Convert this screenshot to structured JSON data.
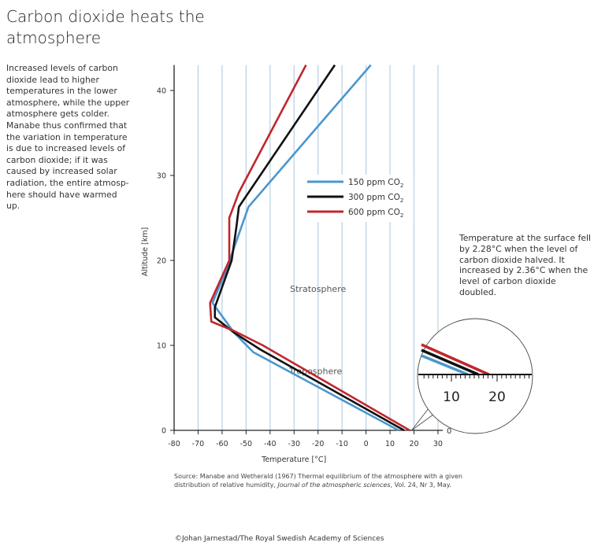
{
  "title": "Carbon dioxide heats the atmosphere",
  "description": "Increased levels of carbon dioxide lead to higher temperatures in the lower atmosphere, while the upper atmosphere gets colder. Manabe thus confirmed that the variation in temperature is due to increased levels of carbon dioxide; if it was caused by increased solar radiation, the entire atmosp-here should have warmed up.",
  "annotation": "Temperature at the surface fell by 2.28°C when the level of carbon dioxide halved. It increased by 2.36°C when the level of carbon dioxide doubled.",
  "source": "Source: Manabe and Wetherald (1967) Thermal equilibrium of the atmosphere with a given distribution of relative humidity, ",
  "source_journal": "Journal of the atmospheric sciences",
  "source_end": ", Vol. 24, Nr 3, May.",
  "credit": "©Johan Jarnestad/The Royal Swedish Academy of Sciences",
  "chart_data": {
    "type": "line",
    "xlabel": "Temperature [°C]",
    "ylabel": "Altitude [km]",
    "xlim": [
      -80,
      30
    ],
    "ylim": [
      0,
      43
    ],
    "xticks": [
      -80,
      -70,
      -60,
      -50,
      -40,
      -30,
      -20,
      -10,
      0,
      10,
      20,
      30
    ],
    "yticks": [
      0,
      10,
      20,
      30,
      40
    ],
    "grid": "vertical",
    "legend": "upper-right",
    "region_labels": [
      "Stratosphere",
      "Troposphere"
    ],
    "inset": {
      "ticks": [
        "10",
        "20"
      ],
      "zero_label": "0"
    },
    "series": [
      {
        "name": "150 ppm CO",
        "sub": "2",
        "color": "#4a97cf",
        "points": [
          [
            13.6,
            0
          ],
          [
            -47,
            9.2
          ],
          [
            -55,
            11.5
          ],
          [
            -64,
            15
          ],
          [
            -58,
            19
          ],
          [
            -55,
            21.5
          ],
          [
            -49,
            26.3
          ],
          [
            2,
            43
          ]
        ]
      },
      {
        "name": "300 ppm CO",
        "sub": "2",
        "color": "#111111",
        "points": [
          [
            15.9,
            0
          ],
          [
            -44,
            9.5
          ],
          [
            -55,
            11.5
          ],
          [
            -63,
            13.3
          ],
          [
            -63,
            14.5
          ],
          [
            -56,
            20
          ],
          [
            -54,
            24
          ],
          [
            -53,
            26.3
          ],
          [
            -13,
            43
          ]
        ]
      },
      {
        "name": "600 ppm CO",
        "sub": "2",
        "color": "#c0272d",
        "points": [
          [
            18.2,
            0
          ],
          [
            -43,
            10
          ],
          [
            -55,
            11.7
          ],
          [
            -64.5,
            12.8
          ],
          [
            -65,
            15
          ],
          [
            -57,
            20
          ],
          [
            -57,
            25
          ],
          [
            -53,
            28
          ],
          [
            -25,
            43
          ]
        ]
      }
    ]
  }
}
